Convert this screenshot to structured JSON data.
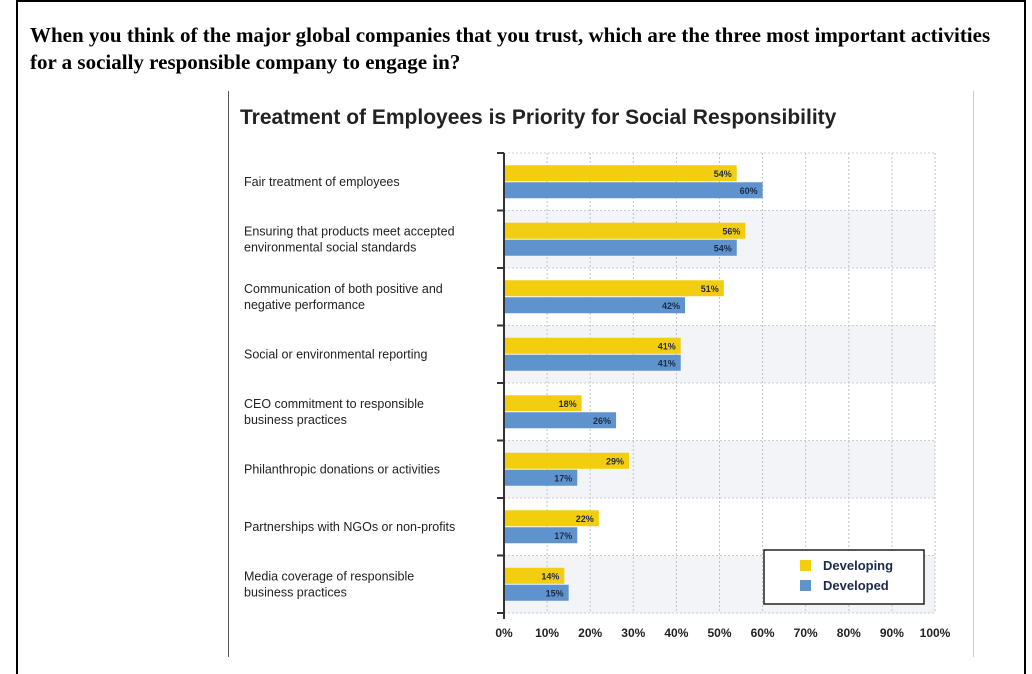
{
  "question": "When you think of the major global companies that you trust, which are the three most important activities for a socially responsible company to engage in?",
  "chart_data": {
    "type": "bar",
    "orientation": "horizontal",
    "title": "Treatment of Employees is Priority for Social Responsibility",
    "categories": [
      [
        "Fair treatment of employees"
      ],
      [
        "Ensuring that products meet accepted",
        "environmental social standards"
      ],
      [
        "Communication of both positive and",
        "negative performance"
      ],
      [
        "Social or environmental reporting"
      ],
      [
        "CEO commitment to responsible",
        "business practices"
      ],
      [
        "Philanthropic donations or activities"
      ],
      [
        "Partnerships with NGOs or non-profits"
      ],
      [
        "Media coverage of responsible",
        "business practices"
      ]
    ],
    "series": [
      {
        "name": "Developing",
        "color": "#f3cd10",
        "values": [
          54,
          56,
          51,
          41,
          18,
          29,
          22,
          14
        ]
      },
      {
        "name": "Developed",
        "color": "#5e93cd",
        "values": [
          60,
          54,
          42,
          41,
          26,
          17,
          17,
          15
        ]
      }
    ],
    "xlim": [
      0,
      100
    ],
    "x_ticks": [
      "0%",
      "10%",
      "20%",
      "30%",
      "40%",
      "50%",
      "60%",
      "70%",
      "80%",
      "90%",
      "100%"
    ],
    "value_suffix": "%",
    "grid": true,
    "legend_position": "bottom-right"
  }
}
